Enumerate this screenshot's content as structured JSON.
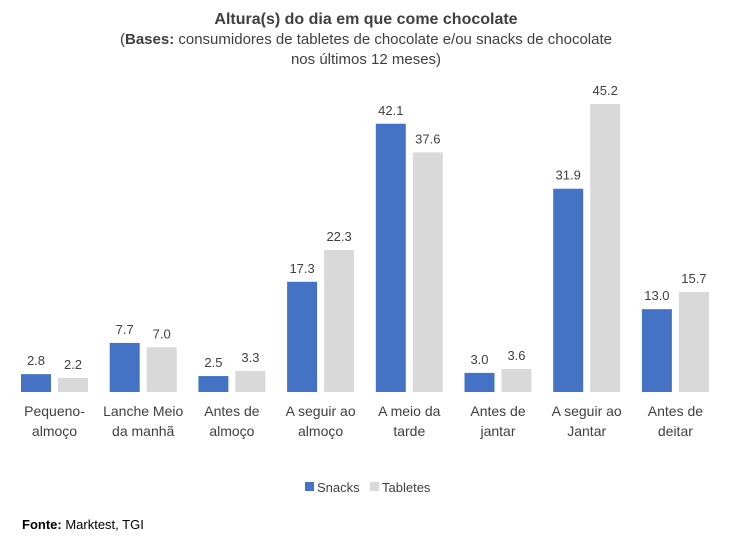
{
  "chart_data": {
    "type": "bar",
    "title": "Altura(s) do dia em que come chocolate",
    "subtitle_bold": "Bases:",
    "subtitle_line1": " consumidores de tabletes de chocolate e/ou snacks de chocolate",
    "subtitle_line2": "nos últimos 12 meses)",
    "subtitle_open": "(",
    "categories": [
      [
        "Pequeno-",
        "almoço"
      ],
      [
        "Lanche Meio",
        "da manhã"
      ],
      [
        "Antes de",
        "almoço"
      ],
      [
        "A seguir ao",
        "almoço"
      ],
      [
        "A meio da",
        "tarde"
      ],
      [
        "Antes de",
        "jantar"
      ],
      [
        "A seguir ao",
        "Jantar"
      ],
      [
        "Antes de",
        "deitar"
      ]
    ],
    "series": [
      {
        "name": "Snacks",
        "color": "#4472C4",
        "values": [
          2.8,
          7.7,
          2.5,
          17.3,
          42.1,
          3.0,
          31.9,
          13.0
        ]
      },
      {
        "name": "Tabletes",
        "color": "#D9D9D9",
        "values": [
          2.2,
          7.0,
          3.3,
          22.3,
          37.6,
          3.6,
          45.2,
          15.7
        ]
      }
    ],
    "ylim": [
      0,
      45.2
    ],
    "legend_position": "bottom",
    "grid": false
  },
  "source": {
    "label": "Fonte:",
    "text": " Marktest, TGI"
  }
}
